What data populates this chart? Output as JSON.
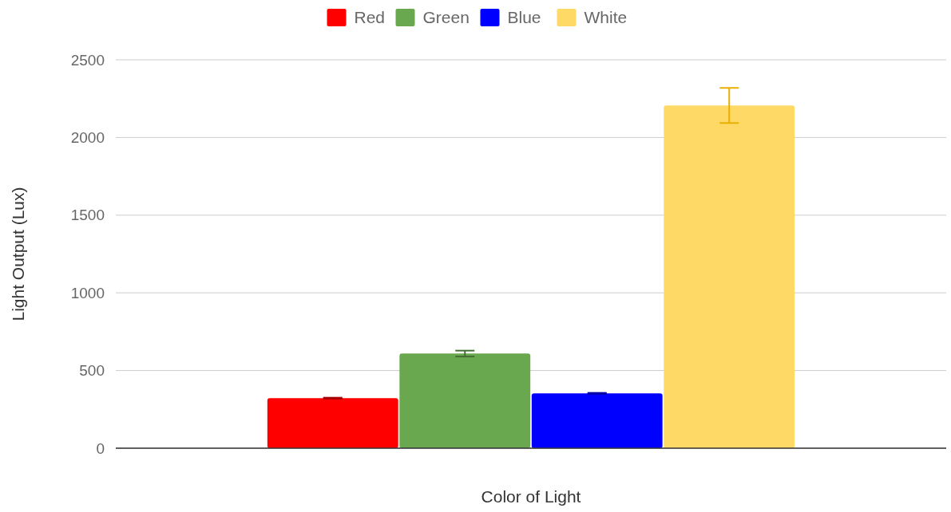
{
  "chart_data": {
    "type": "bar",
    "xlabel": "Color of Light",
    "ylabel": "Light Output (Lux)",
    "categories": [
      null
    ],
    "series": [
      {
        "name": "Red",
        "color": "#ff0000",
        "values": [
          322
        ],
        "errors": [
          3
        ]
      },
      {
        "name": "Green",
        "color": "#6aa84f",
        "values": [
          609
        ],
        "errors": [
          19
        ]
      },
      {
        "name": "Blue",
        "color": "#0000ff",
        "values": [
          353
        ],
        "errors": [
          3
        ]
      },
      {
        "name": "White",
        "color": "#ffd966",
        "values": [
          2206
        ],
        "errors": [
          113
        ]
      }
    ],
    "ylim": [
      0,
      2500
    ],
    "yticks": [
      0,
      500,
      1000,
      1500,
      2000,
      2500
    ],
    "grid": "y",
    "legend": "top"
  }
}
